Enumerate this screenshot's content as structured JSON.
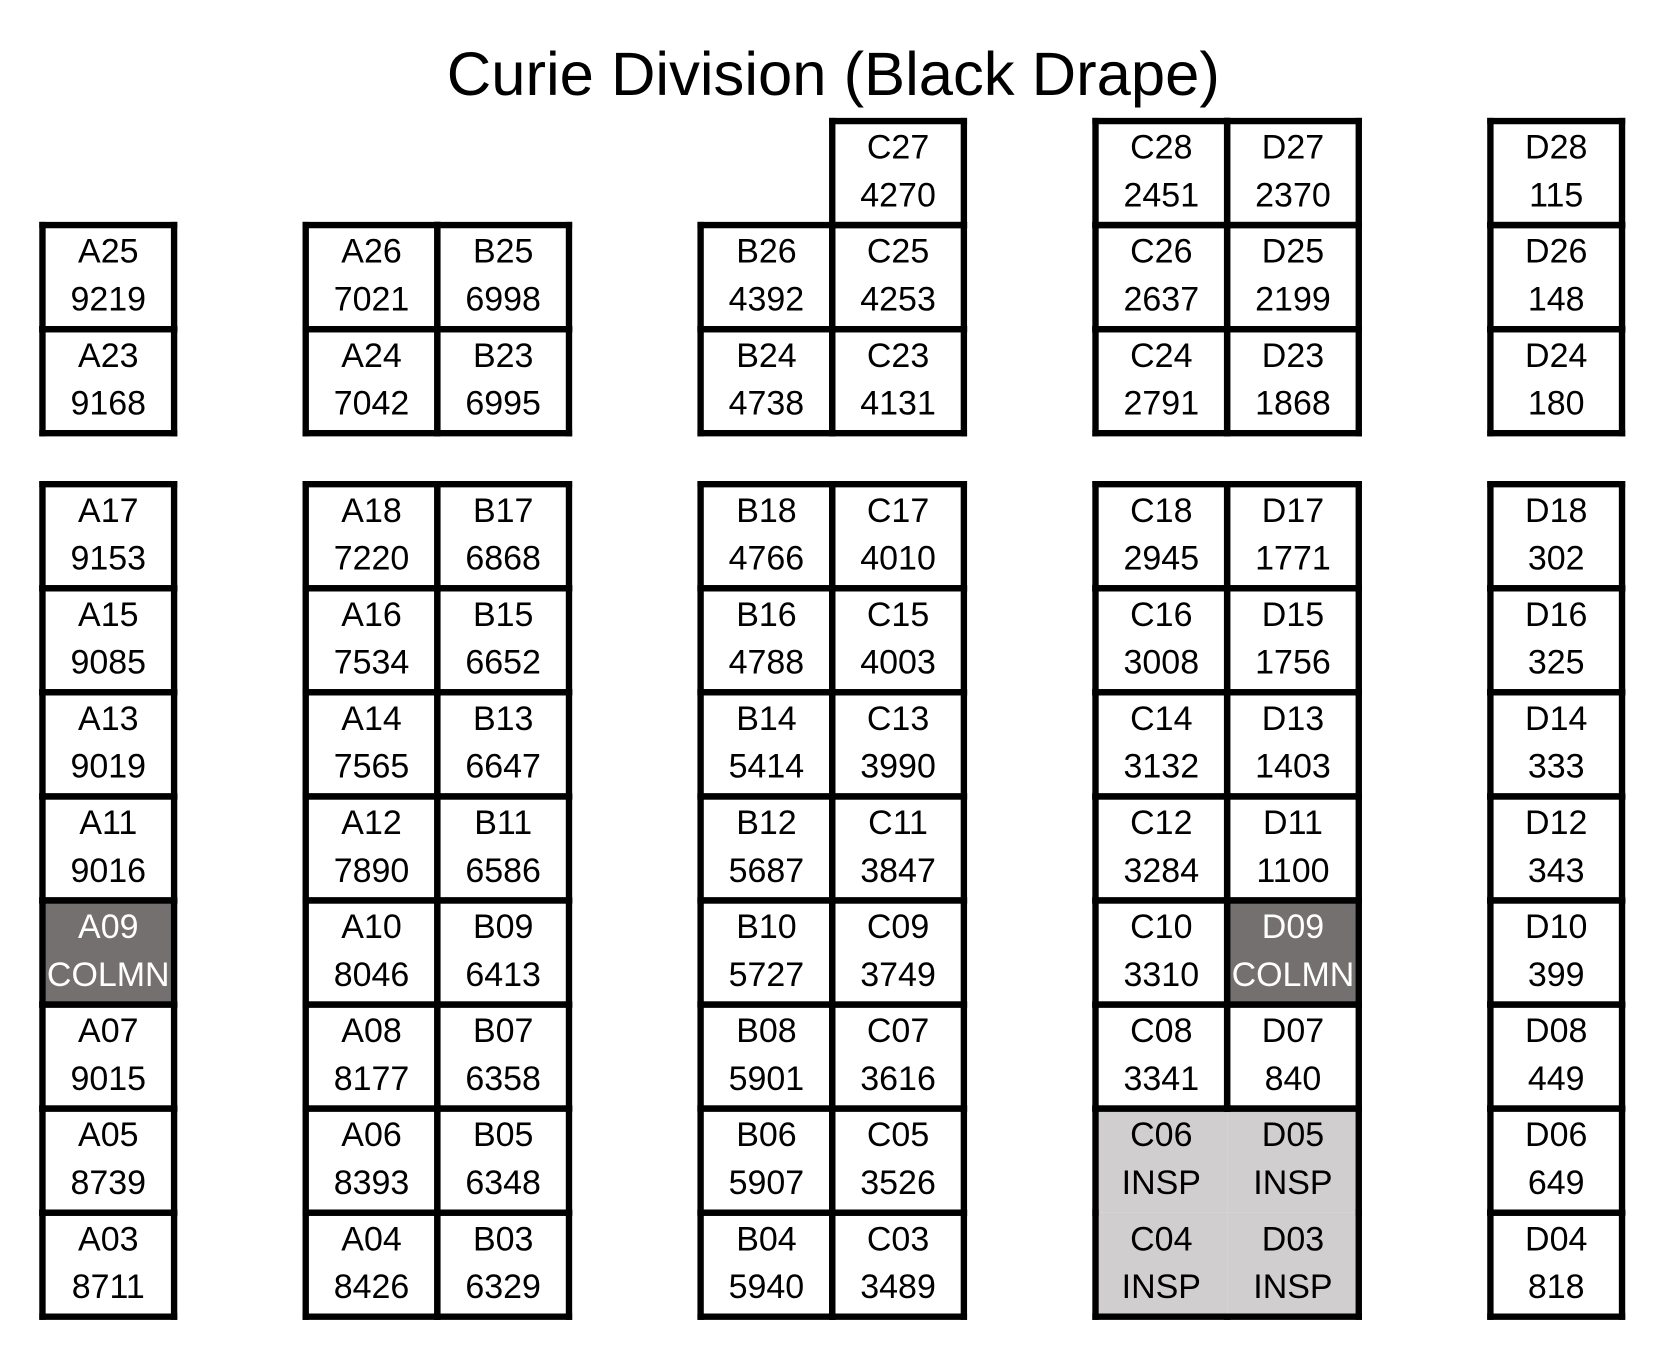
{
  "title": "Curie Division (Black Drape)",
  "sections": [
    {
      "blocks": [
        {
          "rows": [
            [
              {
                "booth": "A25",
                "team": 9219
              }
            ],
            [
              {
                "booth": "A23",
                "team": 9168
              }
            ]
          ]
        },
        {
          "rows": [
            [
              {
                "booth": "A26",
                "team": 7021
              },
              {
                "booth": "B25",
                "team": 6998
              }
            ],
            [
              {
                "booth": "A24",
                "team": 7042
              },
              {
                "booth": "B23",
                "team": 6995
              }
            ]
          ]
        },
        {
          "rows": [
            [
              {
                "booth": "C27",
                "team": 4270
              }
            ],
            [
              {
                "booth": "B26",
                "team": 4392
              },
              {
                "booth": "C25",
                "team": 4253
              }
            ],
            [
              {
                "booth": "B24",
                "team": 4738
              },
              {
                "booth": "C23",
                "team": 4131
              }
            ]
          ]
        },
        {
          "rows": [
            [
              {
                "booth": "C28",
                "team": 2451
              },
              {
                "booth": "D27",
                "team": 2370
              }
            ],
            [
              {
                "booth": "C26",
                "team": 2637
              },
              {
                "booth": "D25",
                "team": 2199
              }
            ],
            [
              {
                "booth": "C24",
                "team": 2791
              },
              {
                "booth": "D23",
                "team": 1868
              }
            ]
          ]
        },
        {
          "rows": [
            [
              {
                "booth": "D28",
                "team": 115
              }
            ],
            [
              {
                "booth": "D26",
                "team": 148
              }
            ],
            [
              {
                "booth": "D24",
                "team": 180
              }
            ]
          ]
        }
      ]
    },
    {
      "blocks": [
        {
          "rows": [
            [
              {
                "booth": "A17",
                "team": 9153
              }
            ],
            [
              {
                "booth": "A15",
                "team": 9085
              }
            ],
            [
              {
                "booth": "A13",
                "team": 9019
              }
            ],
            [
              {
                "booth": "A11",
                "team": 9016
              }
            ],
            [
              {
                "booth": "A09",
                "team": "COLMN",
                "fill": "#747070"
              }
            ],
            [
              {
                "booth": "A07",
                "team": 9015
              }
            ],
            [
              {
                "booth": "A05",
                "team": 8739
              }
            ],
            [
              {
                "booth": "A03",
                "team": 8711
              }
            ]
          ]
        },
        {
          "rows": [
            [
              {
                "booth": "A18",
                "team": 7220
              },
              {
                "booth": "B17",
                "team": 6868
              }
            ],
            [
              {
                "booth": "A16",
                "team": 7534
              },
              {
                "booth": "B15",
                "team": 6652
              }
            ],
            [
              {
                "booth": "A14",
                "team": 7565
              },
              {
                "booth": "B13",
                "team": 6647
              }
            ],
            [
              {
                "booth": "A12",
                "team": 7890
              },
              {
                "booth": "B11",
                "team": 6586
              }
            ],
            [
              {
                "booth": "A10",
                "team": 8046
              },
              {
                "booth": "B09",
                "team": 6413
              }
            ],
            [
              {
                "booth": "A08",
                "team": 8177
              },
              {
                "booth": "B07",
                "team": 6358
              }
            ],
            [
              {
                "booth": "A06",
                "team": 8393
              },
              {
                "booth": "B05",
                "team": 6348
              }
            ],
            [
              {
                "booth": "A04",
                "team": 8426
              },
              {
                "booth": "B03",
                "team": 6329
              }
            ]
          ]
        },
        {
          "rows": [
            [
              {
                "booth": "B18",
                "team": 4766
              },
              {
                "booth": "C17",
                "team": 4010
              }
            ],
            [
              {
                "booth": "B16",
                "team": 4788
              },
              {
                "booth": "C15",
                "team": 4003
              }
            ],
            [
              {
                "booth": "B14",
                "team": 5414
              },
              {
                "booth": "C13",
                "team": 3990
              }
            ],
            [
              {
                "booth": "B12",
                "team": 5687
              },
              {
                "booth": "C11",
                "team": 3847
              }
            ],
            [
              {
                "booth": "B10",
                "team": 5727
              },
              {
                "booth": "C09",
                "team": 3749
              }
            ],
            [
              {
                "booth": "B08",
                "team": 5901
              },
              {
                "booth": "C07",
                "team": 3616
              }
            ],
            [
              {
                "booth": "B06",
                "team": 5907
              },
              {
                "booth": "C05",
                "team": 3526
              }
            ],
            [
              {
                "booth": "B04",
                "team": 5940
              },
              {
                "booth": "C03",
                "team": 3489
              }
            ]
          ]
        },
        {
          "rows": [
            [
              {
                "booth": "C18",
                "team": 2945
              },
              {
                "booth": "D17",
                "team": 1771
              }
            ],
            [
              {
                "booth": "C16",
                "team": 3008
              },
              {
                "booth": "D15",
                "team": 1756
              }
            ],
            [
              {
                "booth": "C14",
                "team": 3132
              },
              {
                "booth": "D13",
                "team": 1403
              }
            ],
            [
              {
                "booth": "C12",
                "team": 3284
              },
              {
                "booth": "D11",
                "team": 1100
              }
            ],
            [
              {
                "booth": "C10",
                "team": 3310
              },
              {
                "booth": "D09",
                "team": "COLMN",
                "fill": "#747070"
              }
            ],
            [
              {
                "booth": "C08",
                "team": 3341
              },
              {
                "booth": "D07",
                "team": 840
              }
            ],
            [
              {
                "booth": "C06",
                "team": "INSP",
                "fill": "#d0cece"
              },
              {
                "booth": "D05",
                "team": "INSP",
                "fill": "#d0cece"
              }
            ],
            [
              {
                "booth": "C04",
                "team": "INSP",
                "fill": "#d0cece"
              },
              {
                "booth": "D03",
                "team": "INSP",
                "fill": "#d0cece"
              }
            ]
          ]
        },
        {
          "rows": [
            [
              {
                "booth": "D18",
                "team": 302
              }
            ],
            [
              {
                "booth": "D16",
                "team": 325
              }
            ],
            [
              {
                "booth": "D14",
                "team": 333
              }
            ],
            [
              {
                "booth": "D12",
                "team": 343
              }
            ],
            [
              {
                "booth": "D10",
                "team": 399
              }
            ],
            [
              {
                "booth": "D08",
                "team": 449
              }
            ],
            [
              {
                "booth": "D06",
                "team": 649
              }
            ],
            [
              {
                "booth": "D04",
                "team": 818
              }
            ]
          ]
        }
      ]
    }
  ]
}
